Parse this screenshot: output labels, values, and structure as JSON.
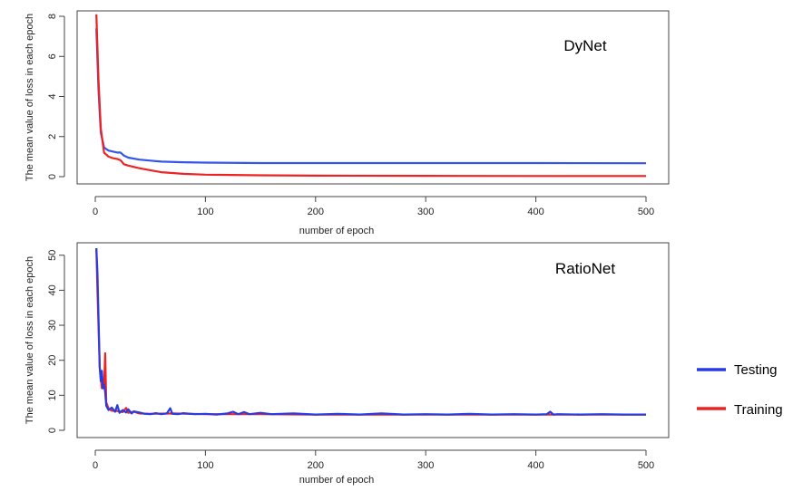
{
  "chart_data": [
    {
      "type": "line",
      "title": "DyNet",
      "xlabel": "number of epoch",
      "ylabel": "The mean value of loss in each epoch",
      "xlim": [
        0,
        500
      ],
      "ylim": [
        0,
        8
      ],
      "xticks": [
        0,
        100,
        200,
        300,
        400,
        500
      ],
      "yticks": [
        0,
        2,
        4,
        6,
        8
      ],
      "grid": false,
      "series": [
        {
          "name": "Testing",
          "color": "#3355ee",
          "x": [
            1,
            3,
            5,
            8,
            12,
            16,
            20,
            23,
            26,
            30,
            40,
            50,
            60,
            80,
            100,
            150,
            200,
            300,
            400,
            500
          ],
          "y": [
            7.4,
            4.3,
            2.2,
            1.45,
            1.3,
            1.25,
            1.2,
            1.2,
            1.05,
            0.95,
            0.85,
            0.8,
            0.75,
            0.72,
            0.7,
            0.68,
            0.68,
            0.68,
            0.68,
            0.67
          ]
        },
        {
          "name": "Training",
          "color": "#ee2222",
          "x": [
            1,
            3,
            5,
            8,
            12,
            16,
            20,
            23,
            26,
            30,
            40,
            50,
            60,
            80,
            100,
            150,
            200,
            300,
            400,
            500
          ],
          "y": [
            8.1,
            4.8,
            2.4,
            1.2,
            1.0,
            0.92,
            0.88,
            0.82,
            0.62,
            0.55,
            0.42,
            0.32,
            0.22,
            0.14,
            0.1,
            0.07,
            0.05,
            0.04,
            0.03,
            0.03
          ]
        }
      ]
    },
    {
      "type": "line",
      "title": "RatioNet",
      "xlabel": "number of epoch",
      "ylabel": "The mean value of loss in each epoch",
      "xlim": [
        0,
        500
      ],
      "ylim": [
        0,
        52
      ],
      "xticks": [
        0,
        100,
        200,
        300,
        400,
        500
      ],
      "yticks": [
        0,
        10,
        20,
        30,
        40,
        50
      ],
      "grid": false,
      "series": [
        {
          "name": "Training",
          "color": "#ee2222",
          "x": [
            1,
            2,
            4,
            6,
            7,
            8,
            9,
            10,
            12,
            15,
            20,
            25,
            28,
            30,
            35,
            40,
            50,
            70,
            100,
            150,
            200,
            300,
            400,
            500
          ],
          "y": [
            52,
            40,
            18,
            12,
            14,
            12,
            22,
            8,
            6.2,
            5.6,
            5.5,
            5.2,
            6.4,
            5.0,
            5.3,
            4.8,
            4.7,
            4.8,
            4.6,
            4.6,
            4.5,
            4.5,
            4.5,
            4.5
          ]
        },
        {
          "name": "Testing",
          "color": "#2a3be0",
          "x": [
            1,
            2,
            4,
            5,
            6,
            7,
            8,
            9,
            10,
            12,
            15,
            18,
            20,
            22,
            25,
            28,
            30,
            33,
            35,
            40,
            45,
            50,
            55,
            60,
            65,
            68,
            70,
            75,
            80,
            90,
            100,
            110,
            120,
            125,
            130,
            135,
            140,
            150,
            160,
            180,
            200,
            220,
            240,
            260,
            280,
            300,
            320,
            340,
            360,
            380,
            400,
            410,
            413,
            416,
            420,
            440,
            460,
            480,
            500
          ],
          "y": [
            52,
            45,
            18,
            14,
            17,
            12,
            13,
            11,
            7,
            5.8,
            6.5,
            5.3,
            7.2,
            5.0,
            5.8,
            5.1,
            6.0,
            4.8,
            5.4,
            5.1,
            4.7,
            4.6,
            4.9,
            4.6,
            4.8,
            6.3,
            4.7,
            4.6,
            4.9,
            4.6,
            4.7,
            4.5,
            4.8,
            5.3,
            4.6,
            5.2,
            4.6,
            5.0,
            4.6,
            4.8,
            4.5,
            4.7,
            4.5,
            4.8,
            4.5,
            4.6,
            4.5,
            4.7,
            4.5,
            4.6,
            4.5,
            4.6,
            5.3,
            4.5,
            4.6,
            4.5,
            4.6,
            4.5,
            4.5
          ]
        }
      ]
    }
  ],
  "legend": {
    "placement": "right",
    "items": [
      {
        "label": "Testing",
        "color": "#2a3be0"
      },
      {
        "label": "Training",
        "color": "#ee2222"
      }
    ]
  }
}
